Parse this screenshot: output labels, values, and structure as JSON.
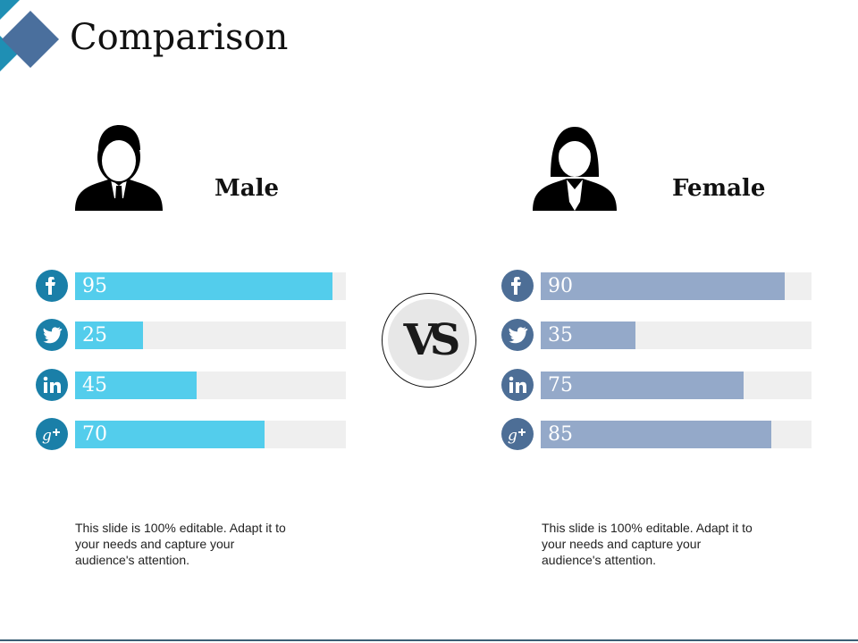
{
  "title": "Comparison",
  "colors": {
    "male_bar": "#53cdec",
    "female_bar": "#94a9c9",
    "icon_male": "#1a7fa8",
    "icon_female": "#4d6e96",
    "accent_dark": "#4a6f9d",
    "accent_light": "#1f8fb4"
  },
  "vs_label": "VS",
  "chart_data": [
    {
      "type": "bar",
      "title": "Male",
      "categories": [
        "facebook",
        "twitter",
        "linkedin",
        "google-plus"
      ],
      "values": [
        95,
        25,
        45,
        70
      ],
      "ylim": [
        0,
        100
      ]
    },
    {
      "type": "bar",
      "title": "Female",
      "categories": [
        "facebook",
        "twitter",
        "linkedin",
        "google-plus"
      ],
      "values": [
        90,
        35,
        75,
        85
      ],
      "ylim": [
        0,
        100
      ]
    }
  ],
  "male": {
    "label": "Male",
    "note": "This slide is 100% editable. Adapt it to your needs and capture your audience's attention.",
    "icon": "male-user-icon"
  },
  "female": {
    "label": "Female",
    "note": "This slide is 100% editable. Adapt it to your needs and capture your audience's attention.",
    "icon": "female-user-icon"
  }
}
